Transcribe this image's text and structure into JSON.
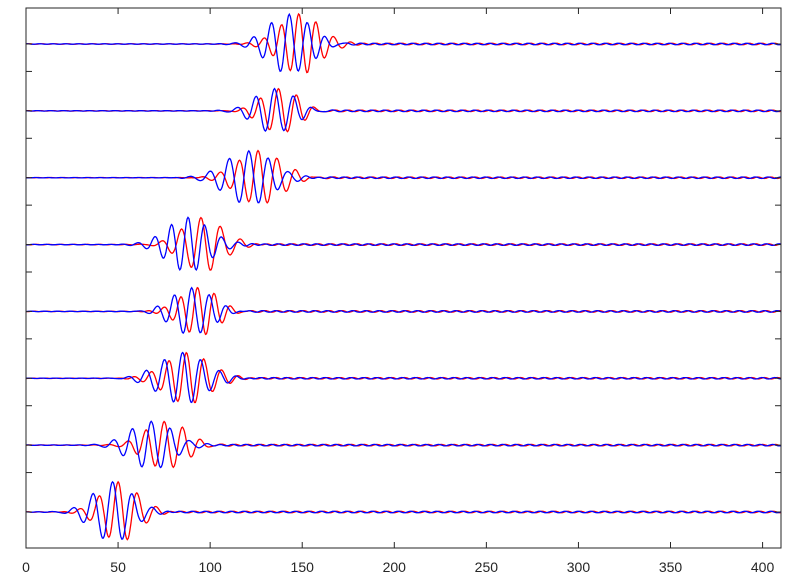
{
  "chart_data": {
    "type": "line",
    "title": "",
    "xlabel": "",
    "ylabel": "",
    "xlim": [
      0,
      410
    ],
    "xticks": [
      0,
      50,
      100,
      150,
      200,
      250,
      300,
      350,
      400
    ],
    "xtick_labels": [
      "0",
      "50",
      "100",
      "150",
      "200",
      "250",
      "300",
      "350",
      "400"
    ],
    "y_tick_labels_shown": false,
    "legend": "none",
    "grid": false,
    "trace_count": 8,
    "series": [
      {
        "color": "#ff0000"
      },
      {
        "color": "#0000ff"
      }
    ],
    "traces": [
      {
        "index": 1,
        "packet_center_x": 140,
        "red_peak_x": 149,
        "blue_peak_x": 143,
        "amplitude": 1.0
      },
      {
        "index": 2,
        "packet_center_x": 135,
        "red_peak_x": 138,
        "blue_peak_x": 135,
        "amplitude": 0.75
      },
      {
        "index": 3,
        "packet_center_x": 123,
        "red_peak_x": 127,
        "blue_peak_x": 121,
        "amplitude": 0.9
      },
      {
        "index": 4,
        "packet_center_x": 92,
        "red_peak_x": 96,
        "blue_peak_x": 88,
        "amplitude": 0.9
      },
      {
        "index": 5,
        "packet_center_x": 92,
        "red_peak_x": 94,
        "blue_peak_x": 90,
        "amplitude": 0.8
      },
      {
        "index": 6,
        "packet_center_x": 86,
        "red_peak_x": 88,
        "blue_peak_x": 85,
        "amplitude": 0.85
      },
      {
        "index": 7,
        "packet_center_x": 72,
        "red_peak_x": 76,
        "blue_peak_x": 68,
        "amplitude": 0.8
      },
      {
        "index": 8,
        "packet_center_x": 55,
        "red_peak_x": 51,
        "blue_peak_x": 47,
        "amplitude": 1.0
      }
    ]
  }
}
